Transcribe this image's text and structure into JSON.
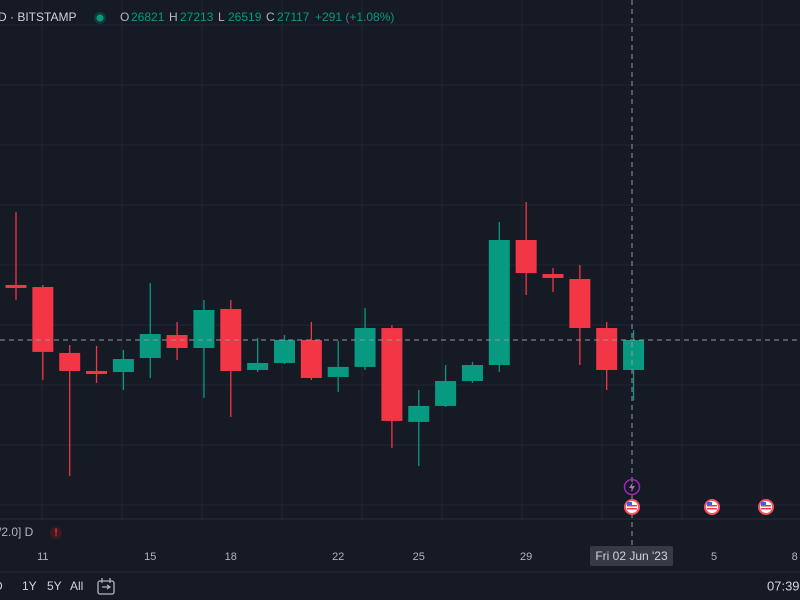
{
  "header": {
    "symbol": "D · BITSTAMP",
    "o_label": "O",
    "h_label": "H",
    "l_label": "L",
    "c_label": "C",
    "change": "+291 (+1.08%)"
  },
  "chart_data": {
    "type": "candlestick",
    "categories": [
      null,
      "11",
      null,
      null,
      null,
      "15",
      null,
      null,
      "18",
      null,
      null,
      null,
      "22",
      null,
      null,
      "25",
      null,
      null,
      null,
      "29",
      null,
      null,
      null,
      null,
      null,
      null,
      "5",
      null,
      null,
      "8"
    ],
    "open": [
      27660,
      27640,
      26989,
      26811,
      26801,
      26939,
      27166,
      27038,
      27423,
      26821,
      26890,
      27117,
      26752,
      26851,
      27235,
      26308,
      26466,
      26712,
      26870,
      28104,
      27768,
      27719,
      27235,
      26821,
      null,
      null,
      null,
      null,
      null,
      null
    ],
    "high": [
      28380,
      27660,
      27068,
      27058,
      27018,
      27680,
      27295,
      27512,
      27512,
      27137,
      27166,
      27295,
      27107,
      27433,
      27265,
      26623,
      26870,
      26900,
      28282,
      28479,
      27828,
      27857,
      27295,
      27213,
      null,
      null,
      null,
      null,
      null,
      null
    ],
    "low": [
      27512,
      26722,
      25775,
      26693,
      26623,
      26742,
      26920,
      26545,
      26357,
      26801,
      26880,
      26722,
      26604,
      26821,
      26051,
      25873,
      26456,
      26693,
      26801,
      27561,
      27591,
      26870,
      26623,
      26519,
      null,
      null,
      null,
      null,
      null,
      null
    ],
    "close": [
      27630,
      26999,
      26811,
      26781,
      26929,
      27176,
      27038,
      27413,
      26811,
      26890,
      27117,
      26742,
      26851,
      27235,
      26318,
      26466,
      26712,
      26870,
      28104,
      27778,
      27729,
      27235,
      26821,
      27117,
      null,
      null,
      null,
      null,
      null,
      null
    ],
    "ylim": [
      25340,
      30473
    ],
    "up_color": "#089981",
    "down_color": "#f23645",
    "crosshair_label": "Fri 02 Jun '23"
  },
  "indicator_label": "/2.0] D",
  "toolbar": {
    "ranges": [
      "D",
      "1Y",
      "5Y",
      "All"
    ],
    "time": "07:39"
  }
}
